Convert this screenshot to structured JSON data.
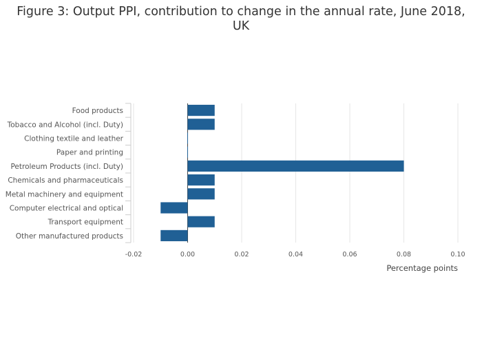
{
  "chart_data": {
    "type": "bar",
    "orientation": "horizontal",
    "title": "Figure 3: Output PPI, contribution to change in the annual rate, June 2018, UK",
    "categories": [
      "Food products",
      "Tobacco and Alcohol (incl. Duty)",
      "Clothing textile and leather",
      "Paper and printing",
      "Petroleum Products (incl. Duty)",
      "Chemicals and pharmaceuticals",
      "Metal machinery and equipment",
      "Computer electrical and optical",
      "Transport equipment",
      "Other manufactured products"
    ],
    "values": [
      0.01,
      0.01,
      0.0,
      0.0,
      0.08,
      0.01,
      0.01,
      -0.01,
      0.01,
      -0.01
    ],
    "xlabel": "Percentage points",
    "ylabel": "",
    "xlim": [
      -0.02,
      0.1
    ],
    "xticks": [
      "-0.02",
      "0.00",
      "0.02",
      "0.04",
      "0.06",
      "0.08",
      "0.10"
    ],
    "grid": true,
    "legend": "none",
    "colors": {
      "bar": "#206095",
      "grid": "#e6e6e6",
      "zero_line": "#444444"
    }
  }
}
